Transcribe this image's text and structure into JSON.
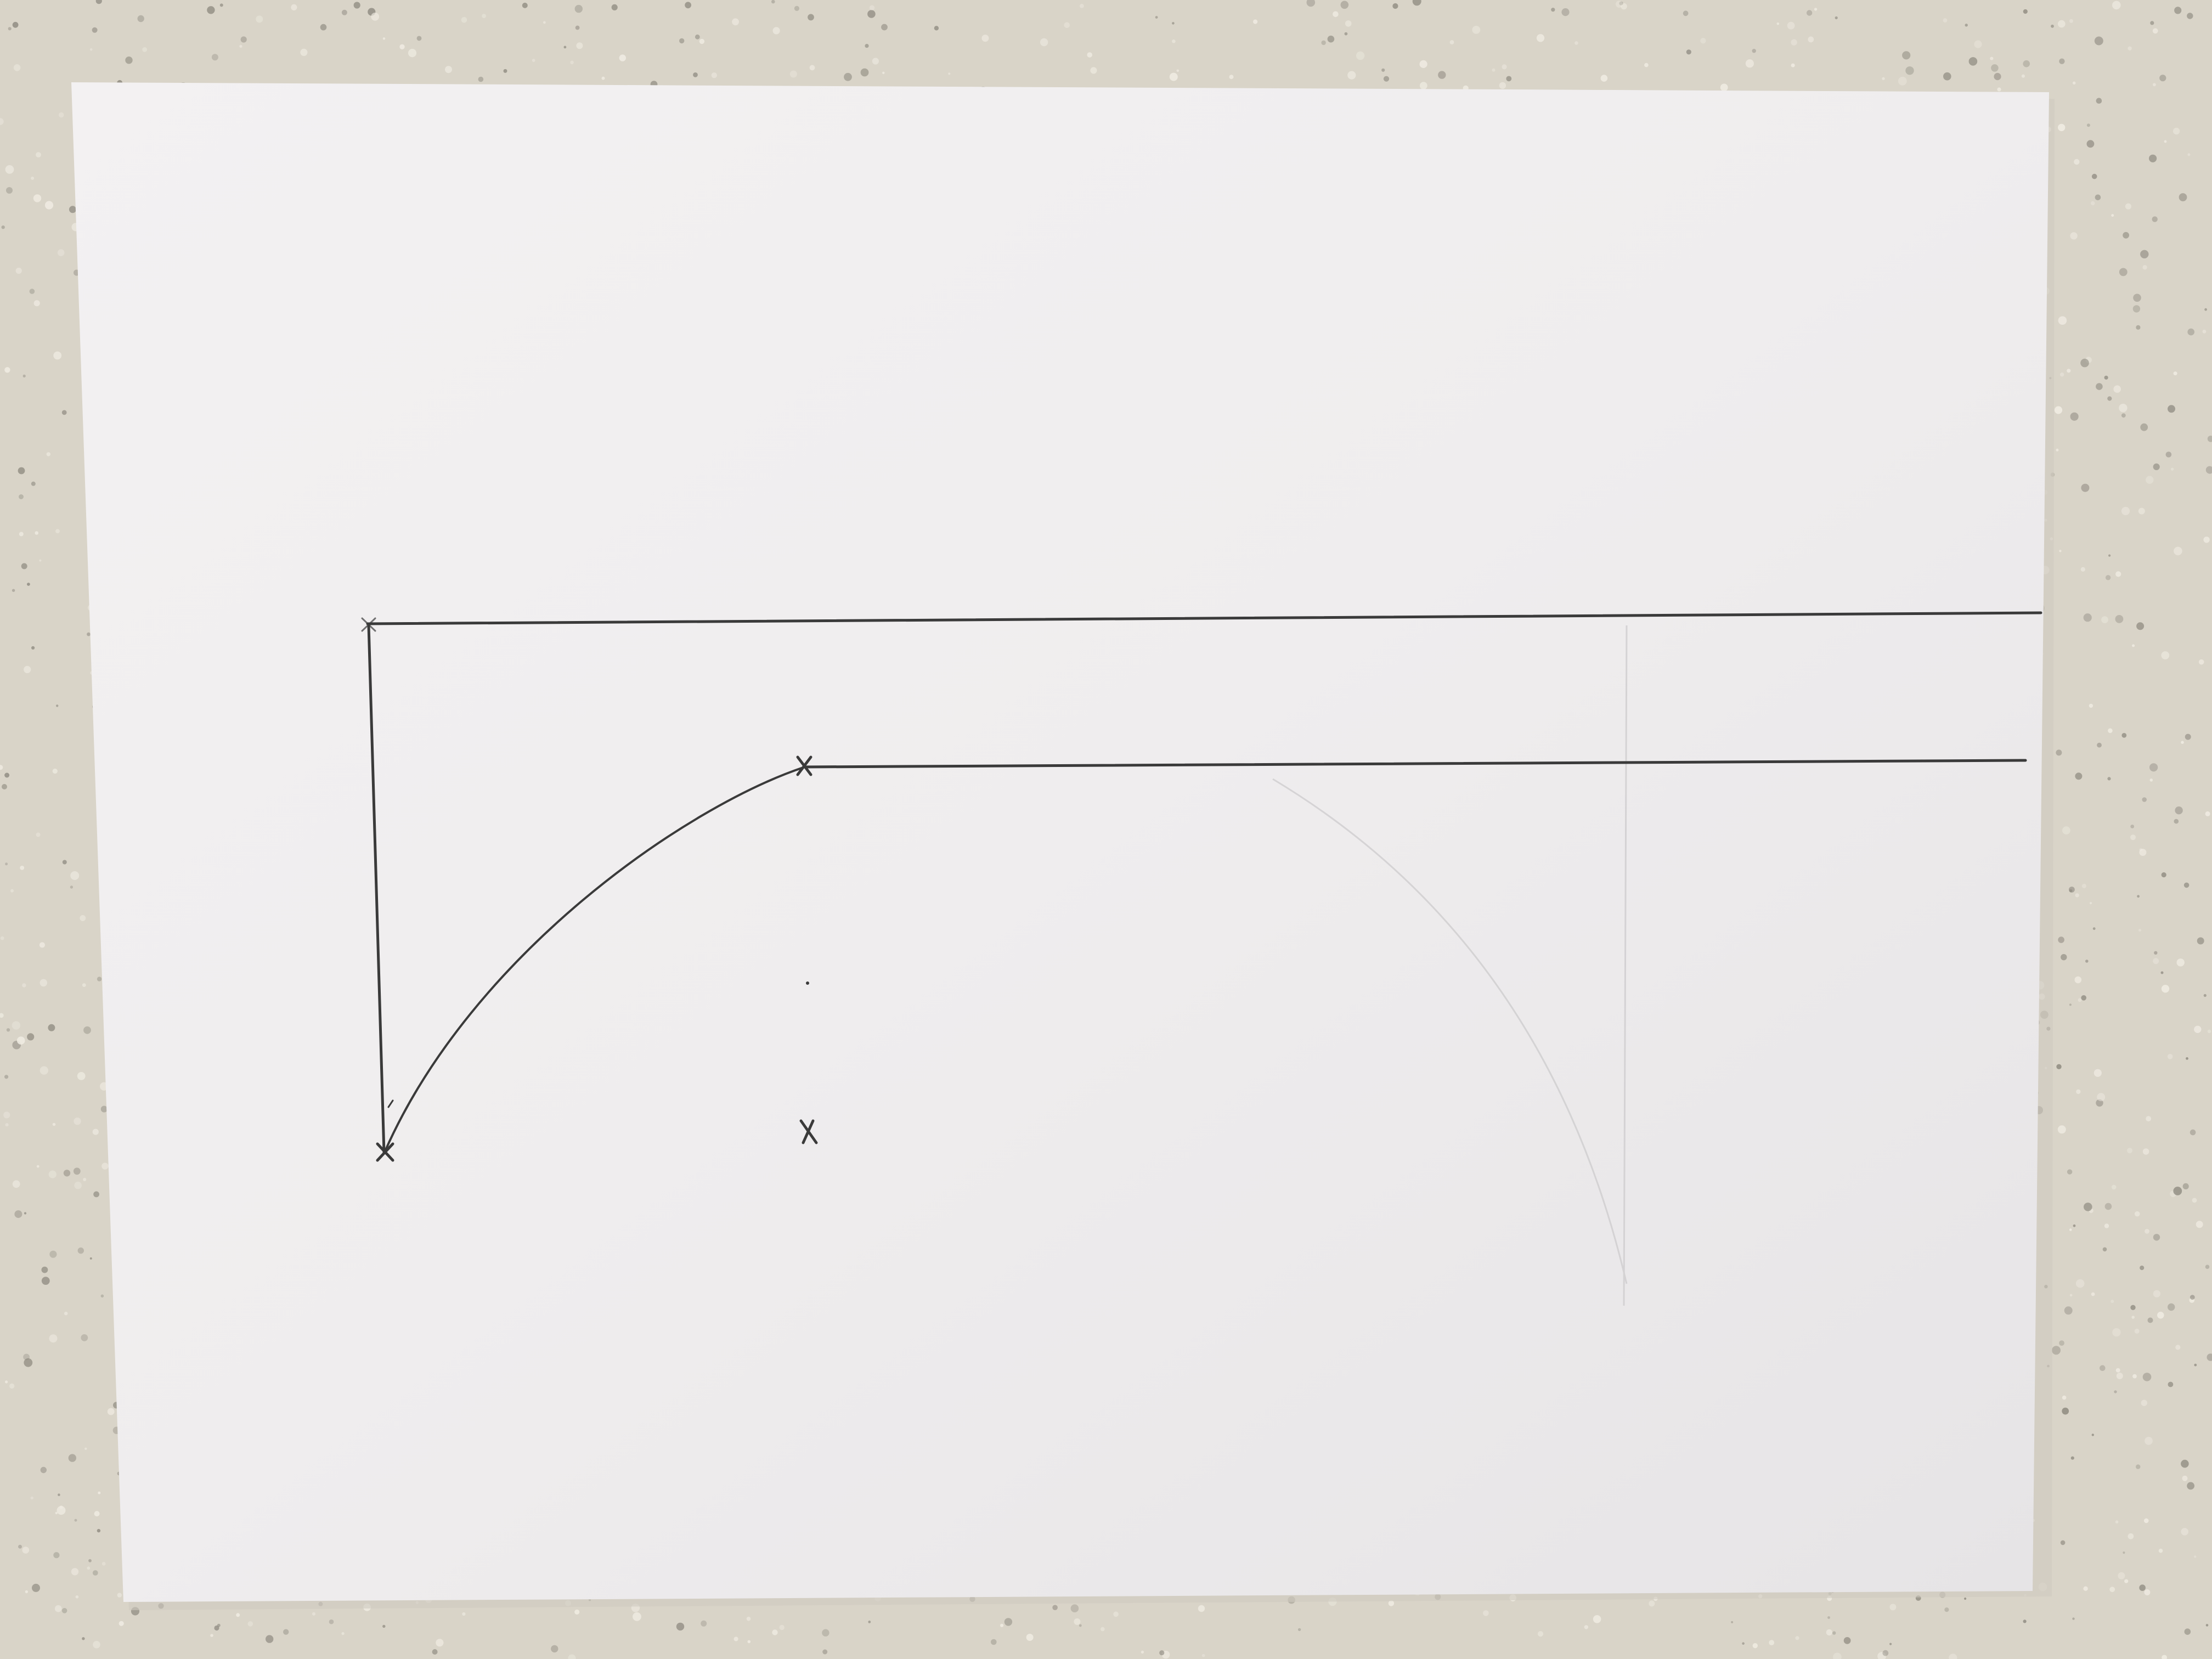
{
  "colors": {
    "countertop": "#d9d4c8",
    "countertop_speck_light": "#f1ede4",
    "countertop_speck_dark": "#8e8a80",
    "paper": "#f1eff0",
    "paper_shadow": "#e2e0e2",
    "pencil": "#3a3a3a",
    "pencil_faint": "#c9c7c9"
  },
  "icons": {
    "point_marker": "x-mark-icon"
  }
}
